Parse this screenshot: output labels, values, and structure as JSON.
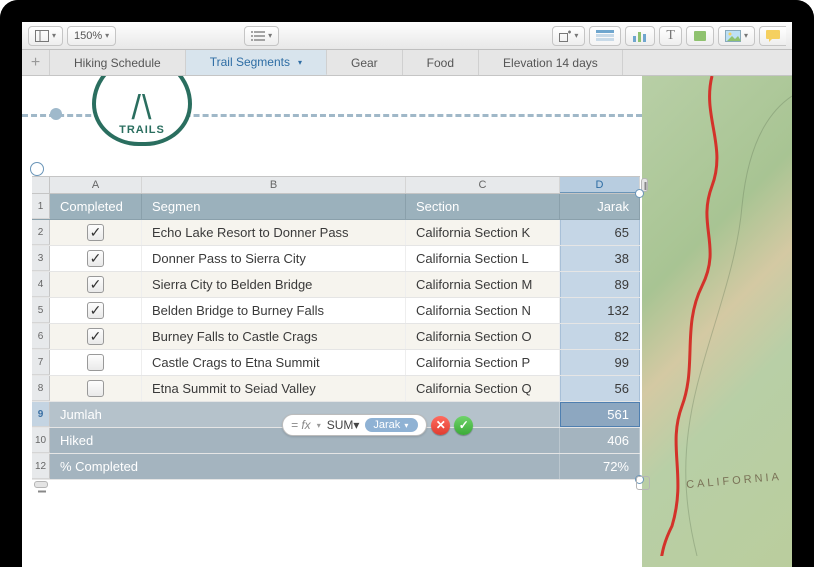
{
  "toolbar": {
    "zoom": "150%"
  },
  "tabs": {
    "items": [
      {
        "label": "Hiking Schedule"
      },
      {
        "label": "Trail Segments"
      },
      {
        "label": "Gear"
      },
      {
        "label": "Food"
      },
      {
        "label": "Elevation 14 days"
      }
    ],
    "activeIndex": 1
  },
  "logo": {
    "text": "TRAILS"
  },
  "map": {
    "label": "CALIFORNIA"
  },
  "table": {
    "columns": [
      "A",
      "B",
      "C",
      "D"
    ],
    "headers": {
      "completed": "Completed",
      "segmen": "Segmen",
      "section": "Section",
      "jarak": "Jarak"
    },
    "rows": [
      {
        "n": "2",
        "done": true,
        "seg": "Echo Lake Resort to Donner Pass",
        "sec": "California Section K",
        "dist": "65"
      },
      {
        "n": "3",
        "done": true,
        "seg": "Donner Pass to Sierra City",
        "sec": "California Section L",
        "dist": "38"
      },
      {
        "n": "4",
        "done": true,
        "seg": "Sierra City to Belden Bridge",
        "sec": "California Section M",
        "dist": "89"
      },
      {
        "n": "5",
        "done": true,
        "seg": "Belden Bridge to Burney Falls",
        "sec": "California Section N",
        "dist": "132"
      },
      {
        "n": "6",
        "done": true,
        "seg": "Burney Falls to Castle Crags",
        "sec": "California Section O",
        "dist": "82"
      },
      {
        "n": "7",
        "done": false,
        "seg": "Castle Crags to Etna Summit",
        "sec": "California Section P",
        "dist": "99"
      },
      {
        "n": "8",
        "done": false,
        "seg": "Etna Summit to Seiad Valley",
        "sec": "California Section Q",
        "dist": "56"
      }
    ],
    "footers": {
      "jumlah": {
        "n": "9",
        "label": "Jumlah",
        "value": "561"
      },
      "hiked": {
        "n": "10",
        "label": "Hiked",
        "value": "406"
      },
      "pct": {
        "n": "12",
        "label": "% Completed",
        "value": "72%"
      }
    }
  },
  "formula": {
    "fn": "SUM",
    "arg": "Jarak"
  }
}
